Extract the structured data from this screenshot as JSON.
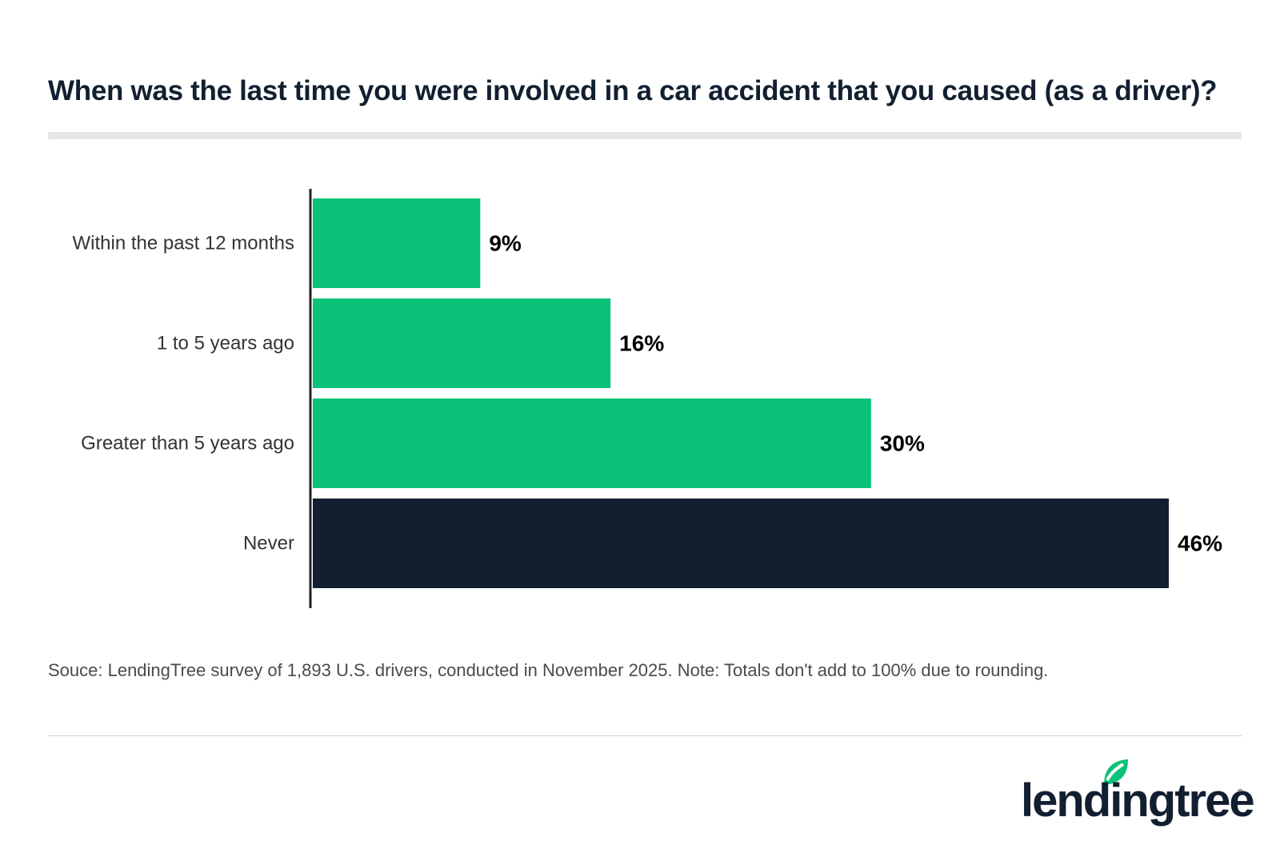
{
  "chart_data": {
    "type": "bar",
    "orientation": "horizontal",
    "title": "When was the last time you were involved in a car accident that you caused (as a driver)?",
    "categories": [
      "Within the past 12 months",
      "1 to 5 years ago",
      "Greater than 5 years ago",
      "Never"
    ],
    "values": [
      9,
      16,
      30,
      46
    ],
    "value_labels": [
      "9%",
      "16%",
      "30%",
      "46%"
    ],
    "colors": [
      "#0bc278",
      "#0bc278",
      "#0bc278",
      "#121f30"
    ],
    "xlim": [
      0,
      46
    ],
    "grid": false,
    "legend": "none"
  },
  "footer": {
    "note": "Souce: LendingTree survey of 1,893 U.S. drivers, conducted in November 2025. Note: Totals don't add to 100% due to rounding."
  },
  "brand": {
    "name": "lendingtree",
    "registered": "®",
    "logo_icon": "leaf-icon",
    "accent": "#0bc278",
    "dark": "#121f30"
  }
}
